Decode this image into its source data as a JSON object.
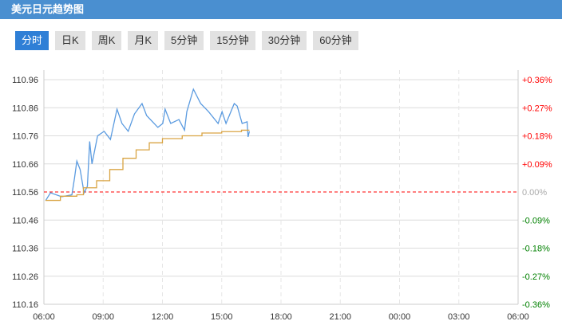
{
  "title": "美元日元趋势图",
  "tabs": [
    {
      "label": "分时",
      "active": true
    },
    {
      "label": "日K",
      "active": false
    },
    {
      "label": "周K",
      "active": false
    },
    {
      "label": "月K",
      "active": false
    },
    {
      "label": "5分钟",
      "active": false
    },
    {
      "label": "15分钟",
      "active": false
    },
    {
      "label": "30分钟",
      "active": false
    },
    {
      "label": "60分钟",
      "active": false
    }
  ],
  "chart_data": {
    "type": "line",
    "base_price": 110.56,
    "ylim": [
      110.16,
      110.96
    ],
    "y_ticks": [
      "110.96",
      "110.86",
      "110.76",
      "110.66",
      "110.56",
      "110.46",
      "110.36",
      "110.26",
      "110.16"
    ],
    "y_right_ticks": [
      "+0.36%",
      "+0.27%",
      "+0.18%",
      "+0.09%",
      "0.00%",
      "-0.09%",
      "-0.18%",
      "-0.27%",
      "-0.36%"
    ],
    "x_ticks": [
      "06:00",
      "09:00",
      "12:00",
      "15:00",
      "18:00",
      "21:00",
      "00:00",
      "03:00",
      "06:00"
    ],
    "colors": {
      "price": "#5b9be0",
      "average": "#d9a443",
      "baseline": "#ff0000",
      "up": "#ff0000",
      "down": "#008000",
      "flat": "#aaaaaa"
    },
    "series": [
      {
        "key": "price",
        "points": [
          [
            "06:05",
            110.529
          ],
          [
            "06:20",
            110.557
          ],
          [
            "06:54",
            110.543
          ],
          [
            "07:25",
            110.55
          ],
          [
            "07:33",
            110.61
          ],
          [
            "07:40",
            110.67
          ],
          [
            "07:50",
            110.64
          ],
          [
            "08:02",
            110.557
          ],
          [
            "08:12",
            110.58
          ],
          [
            "08:19",
            110.74
          ],
          [
            "08:26",
            110.66
          ],
          [
            "08:43",
            110.76
          ],
          [
            "09:03",
            110.776
          ],
          [
            "09:22",
            110.747
          ],
          [
            "09:42",
            110.855
          ],
          [
            "09:57",
            110.804
          ],
          [
            "10:16",
            110.776
          ],
          [
            "10:35",
            110.838
          ],
          [
            "10:58",
            110.875
          ],
          [
            "11:12",
            110.832
          ],
          [
            "11:46",
            110.79
          ],
          [
            "12:01",
            110.804
          ],
          [
            "12:08",
            110.855
          ],
          [
            "12:25",
            110.804
          ],
          [
            "12:50",
            110.818
          ],
          [
            "13:07",
            110.78
          ],
          [
            "13:14",
            110.846
          ],
          [
            "13:34",
            110.926
          ],
          [
            "13:56",
            110.875
          ],
          [
            "14:20",
            110.846
          ],
          [
            "14:49",
            110.804
          ],
          [
            "15:01",
            110.846
          ],
          [
            "15:13",
            110.804
          ],
          [
            "15:38",
            110.875
          ],
          [
            "15:47",
            110.866
          ],
          [
            "16:02",
            110.804
          ],
          [
            "16:17",
            110.81
          ],
          [
            "16:20",
            110.756
          ],
          [
            "16:24",
            110.776
          ]
        ]
      },
      {
        "key": "average",
        "points": [
          [
            "06:05",
            110.53
          ],
          [
            "06:50",
            110.545
          ],
          [
            "07:40",
            110.55
          ],
          [
            "08:00",
            110.575
          ],
          [
            "08:40",
            110.6
          ],
          [
            "09:20",
            110.64
          ],
          [
            "10:00",
            110.68
          ],
          [
            "10:40",
            110.71
          ],
          [
            "11:20",
            110.735
          ],
          [
            "12:00",
            110.75
          ],
          [
            "13:00",
            110.76
          ],
          [
            "14:00",
            110.77
          ],
          [
            "15:00",
            110.775
          ],
          [
            "16:00",
            110.78
          ],
          [
            "16:24",
            110.78
          ]
        ]
      }
    ]
  }
}
